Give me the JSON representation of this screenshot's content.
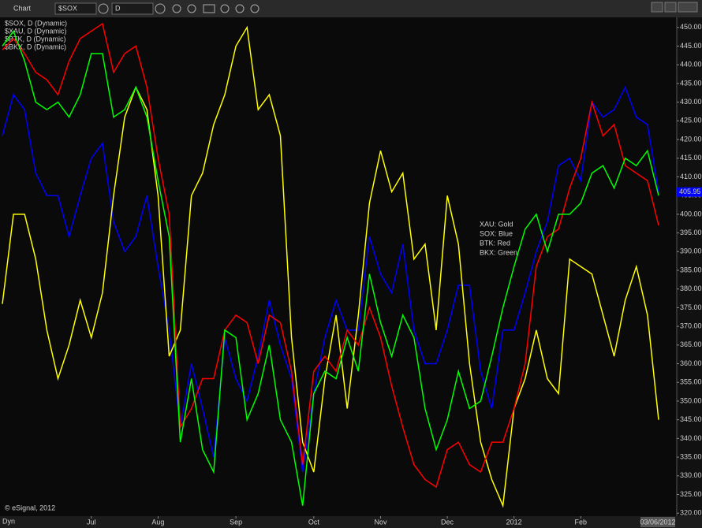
{
  "toolbar": {
    "title": "Chart",
    "symbol": "$SOX",
    "interval": "D"
  },
  "copyright": "© eSignal, 2012",
  "mode": "Dyn",
  "last_date": "03/06/2012",
  "annotations": [
    "XAU:  Gold",
    "SOX:  Blue",
    "BTK:  Red",
    "BKX:  Green"
  ],
  "chart_data": {
    "type": "line",
    "categories": [
      null,
      null,
      null,
      null,
      null,
      null,
      null,
      null,
      "Jul",
      null,
      null,
      null,
      null,
      null,
      "Aug",
      null,
      null,
      null,
      null,
      null,
      null,
      "Sep",
      null,
      null,
      null,
      null,
      null,
      null,
      "Oct",
      null,
      null,
      null,
      null,
      null,
      "Nov",
      null,
      null,
      null,
      null,
      null,
      "Dec",
      null,
      null,
      null,
      null,
      null,
      "2012",
      null,
      null,
      null,
      null,
      null,
      "Feb",
      null,
      null,
      null,
      null,
      null,
      null,
      null
    ],
    "series": [
      {
        "name": "$SOX, D (Dynamic)",
        "color": "#0000ff",
        "values": [
          421,
          432,
          428,
          411,
          405,
          405,
          394,
          405,
          415,
          419,
          398,
          390,
          394,
          405,
          386,
          369,
          343,
          360,
          348,
          335,
          367,
          356,
          350,
          362,
          377,
          365,
          356,
          331,
          352,
          367,
          377,
          369,
          369,
          394,
          384,
          379,
          392,
          369,
          360,
          360,
          369,
          381,
          381,
          358,
          348,
          369,
          369,
          379,
          390,
          398,
          413,
          415,
          409,
          430,
          426,
          428,
          434,
          426,
          424,
          405.95
        ]
      },
      {
        "name": "$XAU, D (Dynamic)",
        "color": "#ffff00",
        "values": [
          376,
          400,
          400,
          388,
          369,
          356,
          365,
          377,
          367,
          379,
          405,
          426,
          434,
          428,
          405,
          362,
          369,
          405,
          411,
          424,
          432,
          445,
          450,
          428,
          432,
          421,
          367,
          339,
          331,
          356,
          373,
          348,
          373,
          403,
          417,
          406,
          411,
          388,
          392,
          369,
          405,
          392,
          360,
          339,
          329,
          322,
          348,
          356,
          369,
          356,
          352,
          388,
          386,
          384,
          373,
          362,
          377,
          386,
          373,
          345
        ]
      },
      {
        "name": "$BTK, D (Dynamic)",
        "color": "#ff0000",
        "values": [
          444,
          447,
          443,
          438,
          436,
          432,
          441,
          447,
          449,
          451,
          438,
          443,
          445,
          434,
          415,
          400,
          343,
          348,
          356,
          356,
          369,
          373,
          371,
          360,
          373,
          371,
          358,
          333,
          358,
          362,
          358,
          369,
          365,
          375,
          367,
          354,
          343,
          333,
          329,
          327,
          337,
          339,
          333,
          331,
          339,
          339,
          348,
          360,
          386,
          394,
          396,
          407,
          415,
          430,
          421,
          424,
          413,
          411,
          409,
          397
        ]
      },
      {
        "name": "$BKX, D (Dynamic)",
        "color": "#00ff00",
        "values": [
          445,
          449,
          441,
          430,
          428,
          430,
          426,
          432,
          443,
          443,
          426,
          428,
          434,
          426,
          409,
          394,
          339,
          356,
          337,
          331,
          369,
          367,
          345,
          352,
          365,
          345,
          339,
          322,
          352,
          358,
          356,
          367,
          358,
          384,
          371,
          362,
          373,
          367,
          348,
          337,
          345,
          358,
          348,
          350,
          362,
          375,
          386,
          396,
          400,
          390,
          400,
          400,
          403,
          411,
          413,
          407,
          415,
          413,
          417,
          405
        ]
      }
    ],
    "ylim": [
      319.2,
      452.7
    ],
    "yticks": [
      {
        "value": 320,
        "label": "320.00"
      },
      {
        "value": 325,
        "label": "325.00"
      },
      {
        "value": 330,
        "label": "330.00"
      },
      {
        "value": 335,
        "label": "335.00"
      },
      {
        "value": 340,
        "label": "340.00"
      },
      {
        "value": 345,
        "label": "345.00"
      },
      {
        "value": 350,
        "label": "350.00"
      },
      {
        "value": 355,
        "label": "355.00"
      },
      {
        "value": 360,
        "label": "360.00"
      },
      {
        "value": 365,
        "label": "365.00"
      },
      {
        "value": 370,
        "label": "370.00"
      },
      {
        "value": 375,
        "label": "375.00"
      },
      {
        "value": 380,
        "label": "380.00"
      },
      {
        "value": 385,
        "label": "385.00"
      },
      {
        "value": 390,
        "label": "390.00"
      },
      {
        "value": 395,
        "label": "395.00"
      },
      {
        "value": 400,
        "label": "400.00"
      },
      {
        "value": 405,
        "label": "405.00"
      },
      {
        "value": 410,
        "label": "410.00"
      },
      {
        "value": 415,
        "label": "415.00"
      },
      {
        "value": 420,
        "label": "420.00"
      },
      {
        "value": 425,
        "label": "425.00"
      },
      {
        "value": 430,
        "label": "430.00"
      },
      {
        "value": 435,
        "label": "435.00"
      },
      {
        "value": 440,
        "label": "440.00"
      },
      {
        "value": 445,
        "label": "445.00"
      },
      {
        "value": 450,
        "label": "450.00"
      }
    ],
    "grid": false
  }
}
